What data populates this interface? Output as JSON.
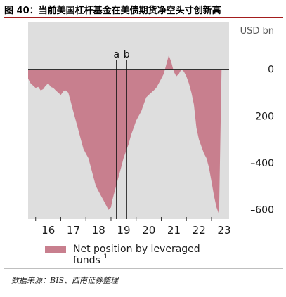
{
  "figure": {
    "title": "图 40：当前美国杠杆基金在美债期货净空头寸创新高",
    "source": "数据来源：BIS、西南证券整理"
  },
  "chart_data": {
    "type": "area",
    "unit_label": "USD bn",
    "x": {
      "min": 2015.7,
      "max": 2023.7,
      "ticks": [
        "16",
        "17",
        "18",
        "19",
        "20",
        "21",
        "22",
        "23"
      ],
      "tick_values": [
        2016,
        2017,
        2018,
        2019,
        2020,
        2021,
        2022,
        2023
      ]
    },
    "y": {
      "min": -640,
      "max": 200,
      "ticks": [
        "0",
        "–200",
        "–400",
        "–600"
      ],
      "tick_values": [
        0,
        -200,
        -400,
        -600
      ]
    },
    "markers": [
      {
        "label": "a",
        "x": 2019.22
      },
      {
        "label": "b",
        "x": 2019.62
      }
    ],
    "legend": {
      "label": "Net position by leveraged funds",
      "superscript": "1",
      "position": "bottom-left"
    },
    "series": [
      {
        "name": "Net position by leveraged funds",
        "color": "#c87f8e",
        "x": [
          2015.7,
          2015.8,
          2015.9,
          2016.0,
          2016.1,
          2016.2,
          2016.3,
          2016.4,
          2016.5,
          2016.6,
          2016.7,
          2016.8,
          2016.9,
          2017.0,
          2017.1,
          2017.2,
          2017.3,
          2017.4,
          2017.5,
          2017.6,
          2017.7,
          2017.8,
          2017.9,
          2018.0,
          2018.1,
          2018.2,
          2018.3,
          2018.4,
          2018.5,
          2018.6,
          2018.7,
          2018.8,
          2018.9,
          2019.0,
          2019.05,
          2019.1,
          2019.15,
          2019.2,
          2019.3,
          2019.4,
          2019.5,
          2019.6,
          2019.7,
          2019.8,
          2019.9,
          2020.0,
          2020.1,
          2020.2,
          2020.3,
          2020.4,
          2020.5,
          2020.6,
          2020.7,
          2020.8,
          2020.9,
          2021.0,
          2021.1,
          2021.2,
          2021.3,
          2021.4,
          2021.5,
          2021.6,
          2021.7,
          2021.8,
          2021.9,
          2022.0,
          2022.1,
          2022.2,
          2022.3,
          2022.4,
          2022.5,
          2022.6,
          2022.7,
          2022.8,
          2022.9,
          2023.0,
          2023.1,
          2023.2,
          2023.3,
          2023.4
        ],
        "values": [
          -40,
          -60,
          -70,
          -80,
          -75,
          -90,
          -85,
          -70,
          -60,
          -75,
          -80,
          -90,
          -100,
          -110,
          -95,
          -90,
          -100,
          -140,
          -180,
          -220,
          -260,
          -300,
          -340,
          -360,
          -380,
          -420,
          -460,
          -500,
          -520,
          -540,
          -560,
          -580,
          -600,
          -590,
          -560,
          -540,
          -520,
          -500,
          -460,
          -420,
          -380,
          -350,
          -320,
          -280,
          -250,
          -220,
          -200,
          -180,
          -150,
          -120,
          -110,
          -100,
          -90,
          -80,
          -60,
          -40,
          -20,
          20,
          60,
          30,
          -10,
          -30,
          -20,
          0,
          -10,
          -30,
          -60,
          -100,
          -150,
          -250,
          -300,
          -330,
          -360,
          -380,
          -420,
          -480,
          -540,
          -590,
          -620,
          0
        ]
      }
    ]
  }
}
